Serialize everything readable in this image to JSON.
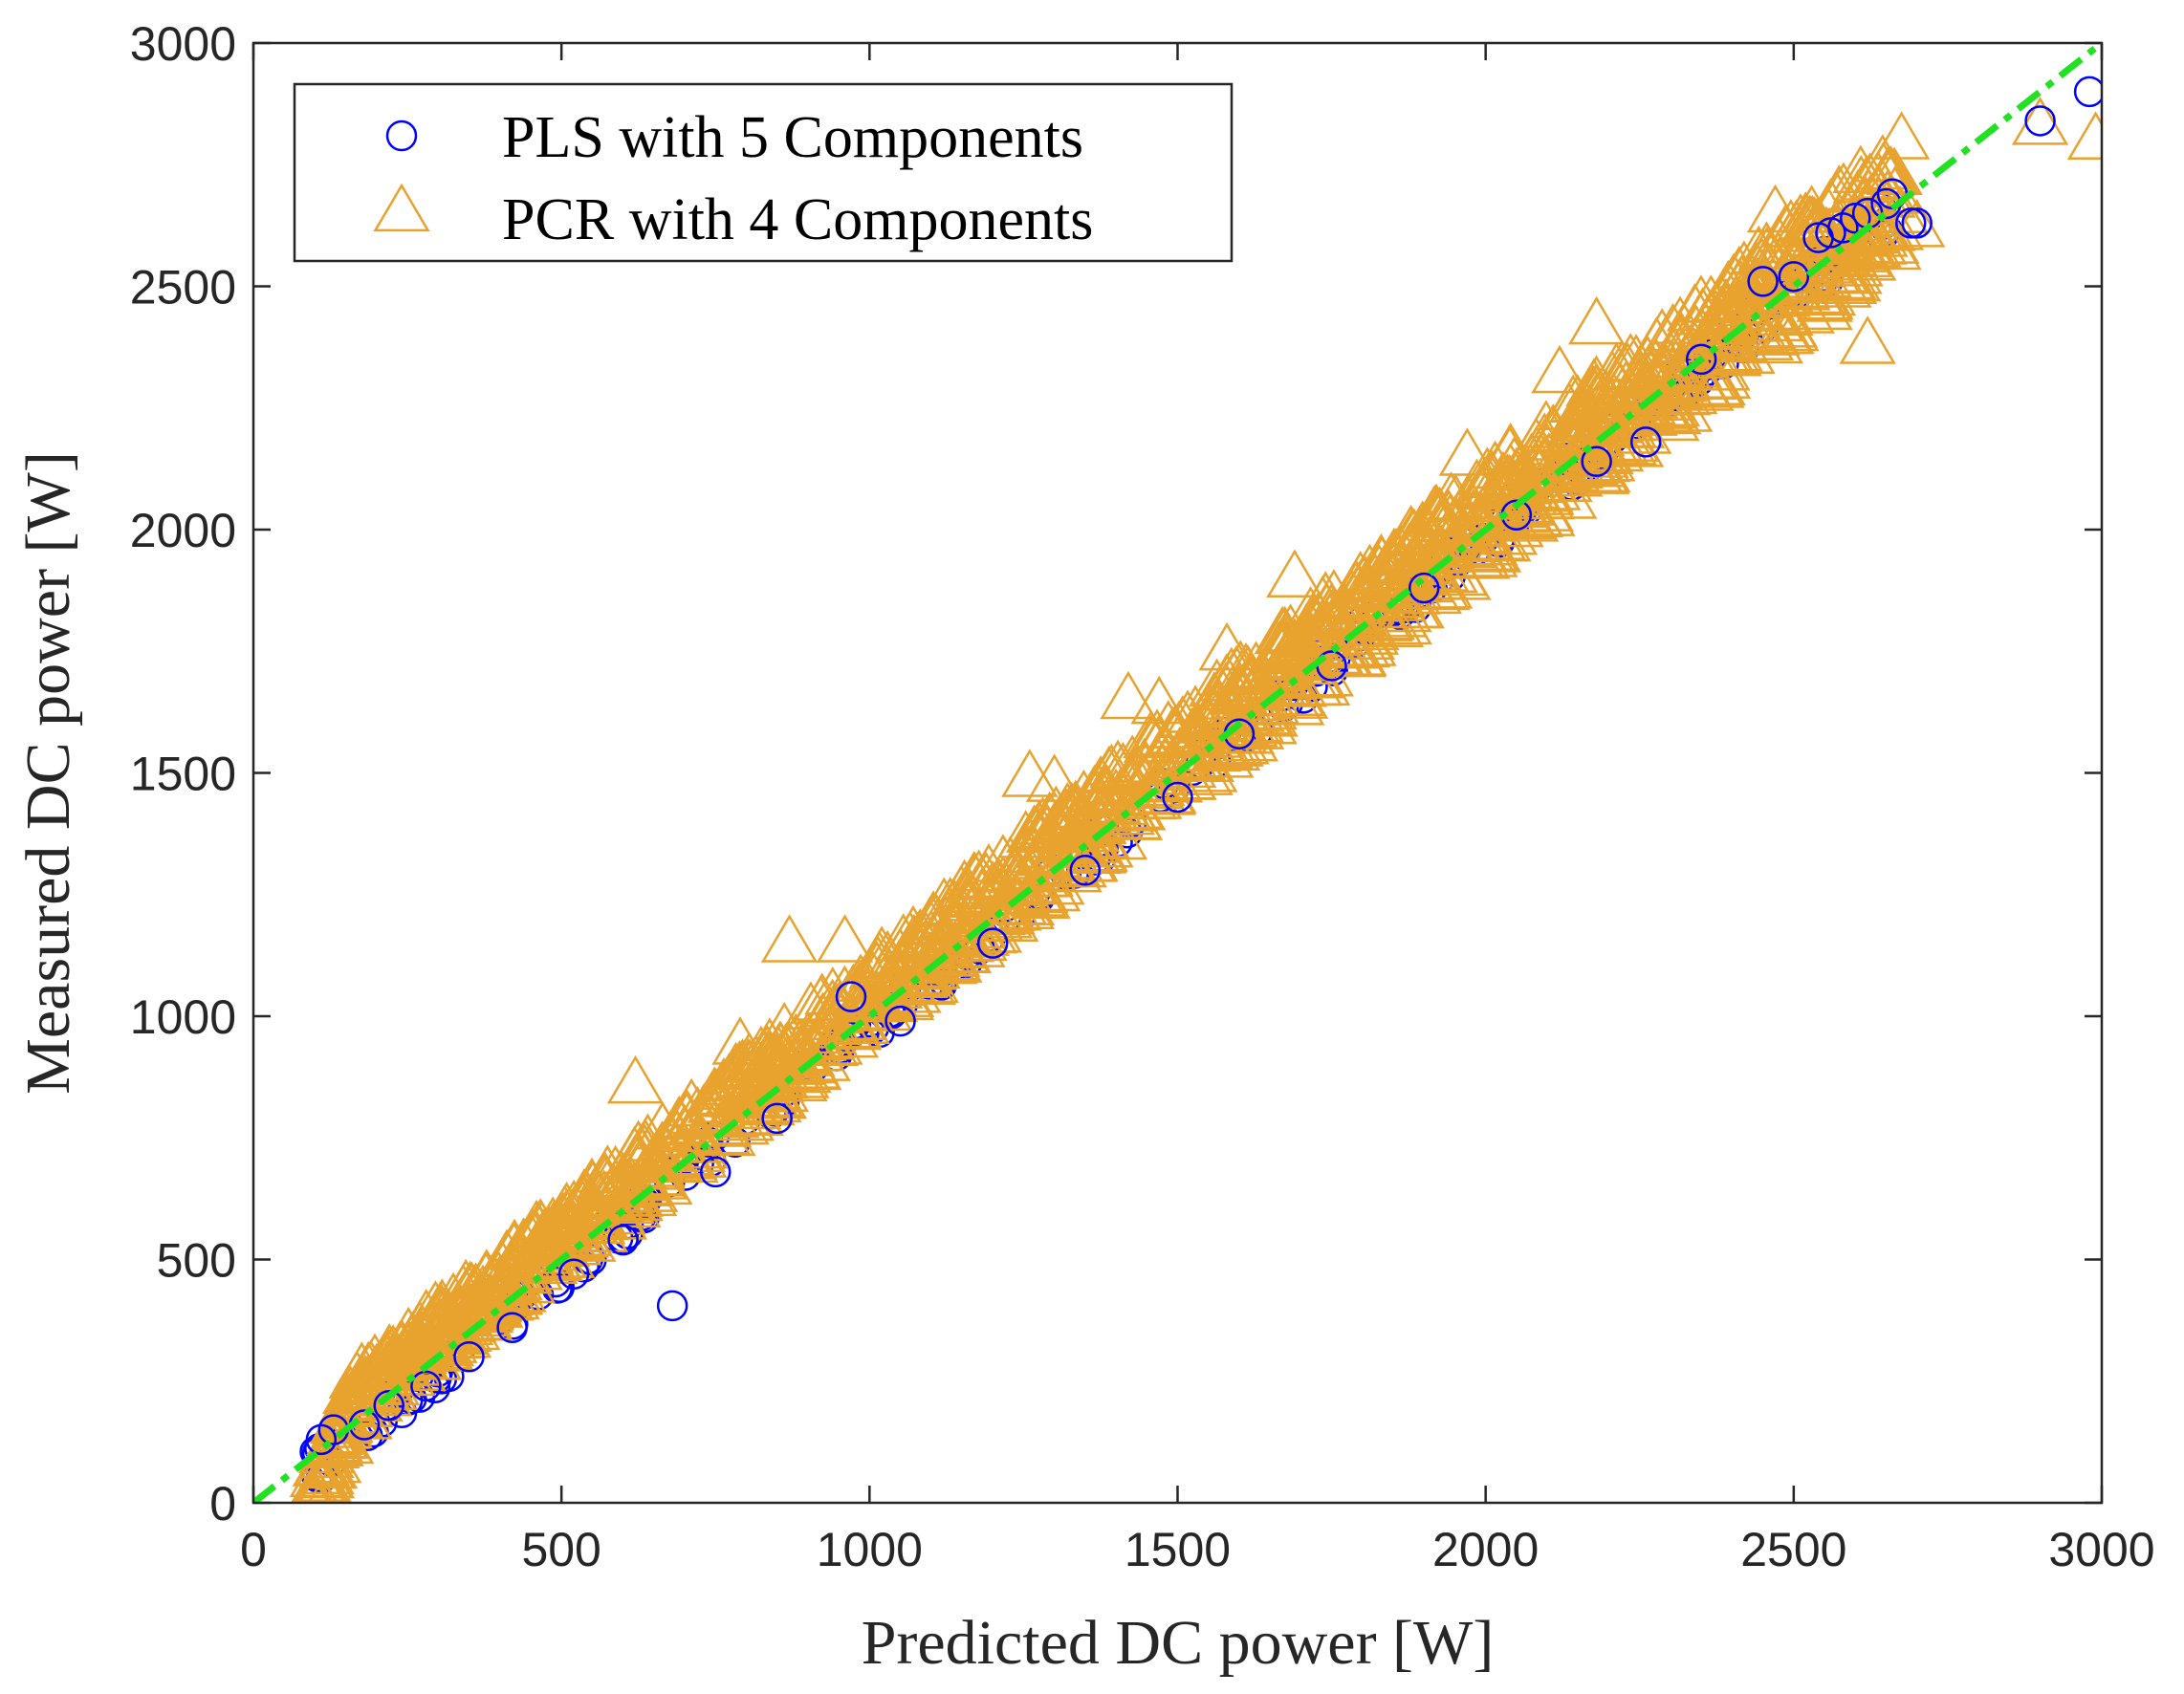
{
  "chart_data": {
    "type": "scatter",
    "title": "",
    "xlabel": "Predicted DC power [W]",
    "ylabel": "Measured DC power [W]",
    "xlim": [
      0,
      3000
    ],
    "ylim": [
      0,
      3000
    ],
    "xticks": [
      0,
      500,
      1000,
      1500,
      2000,
      2500,
      3000
    ],
    "yticks": [
      0,
      500,
      1000,
      1500,
      2000,
      2500,
      3000
    ],
    "grid": false,
    "legend_position": "top-left",
    "reference_line": {
      "name": "y = x",
      "color": "#22e022",
      "style": "dash-dot",
      "x": [
        0,
        3000
      ],
      "y": [
        0,
        3000
      ]
    },
    "series": [
      {
        "name": "PLS  with 5 Components",
        "marker": "circle",
        "color": "#0000ff",
        "points": [
          [
            110,
            130
          ],
          [
            130,
            150
          ],
          [
            180,
            160
          ],
          [
            220,
            200
          ],
          [
            280,
            240
          ],
          [
            350,
            300
          ],
          [
            420,
            360
          ],
          [
            520,
            470
          ],
          [
            600,
            540
          ],
          [
            680,
            405
          ],
          [
            750,
            680
          ],
          [
            850,
            790
          ],
          [
            970,
            1040
          ],
          [
            1050,
            990
          ],
          [
            1200,
            1150
          ],
          [
            1350,
            1300
          ],
          [
            1500,
            1450
          ],
          [
            1600,
            1580
          ],
          [
            1750,
            1720
          ],
          [
            1900,
            1880
          ],
          [
            2050,
            2030
          ],
          [
            2180,
            2140
          ],
          [
            2260,
            2180
          ],
          [
            2350,
            2350
          ],
          [
            2450,
            2510
          ],
          [
            2500,
            2520
          ],
          [
            2540,
            2600
          ],
          [
            2560,
            2610
          ],
          [
            2580,
            2620
          ],
          [
            2600,
            2640
          ],
          [
            2620,
            2650
          ],
          [
            2650,
            2670
          ],
          [
            2660,
            2690
          ],
          [
            2690,
            2630
          ],
          [
            2700,
            2630
          ],
          [
            2900,
            2840
          ],
          [
            2980,
            2900
          ]
        ]
      },
      {
        "name": "PCR with 4 Components",
        "marker": "triangle",
        "color": "#e8a22e",
        "points": [
          [
            100,
            0
          ],
          [
            120,
            10
          ],
          [
            110,
            40
          ],
          [
            130,
            80
          ],
          [
            150,
            120
          ],
          [
            180,
            170
          ],
          [
            220,
            230
          ],
          [
            260,
            280
          ],
          [
            300,
            330
          ],
          [
            350,
            390
          ],
          [
            400,
            450
          ],
          [
            450,
            500
          ],
          [
            500,
            560
          ],
          [
            550,
            610
          ],
          [
            600,
            660
          ],
          [
            620,
            860
          ],
          [
            650,
            700
          ],
          [
            700,
            760
          ],
          [
            750,
            820
          ],
          [
            790,
            940
          ],
          [
            820,
            880
          ],
          [
            870,
            1150
          ],
          [
            900,
            950
          ],
          [
            960,
            1150
          ],
          [
            1000,
            1050
          ],
          [
            1050,
            1100
          ],
          [
            1100,
            1160
          ],
          [
            1150,
            1210
          ],
          [
            1200,
            1260
          ],
          [
            1250,
            1300
          ],
          [
            1260,
            1490
          ],
          [
            1300,
            1480
          ],
          [
            1350,
            1400
          ],
          [
            1400,
            1450
          ],
          [
            1420,
            1650
          ],
          [
            1470,
            1640
          ],
          [
            1500,
            1560
          ],
          [
            1550,
            1600
          ],
          [
            1580,
            1750
          ],
          [
            1600,
            1660
          ],
          [
            1650,
            1700
          ],
          [
            1700,
            1760
          ],
          [
            1690,
            1900
          ],
          [
            1750,
            1800
          ],
          [
            1800,
            1850
          ],
          [
            1850,
            1900
          ],
          [
            1900,
            1960
          ],
          [
            1950,
            2010
          ],
          [
            1970,
            2150
          ],
          [
            2000,
            2060
          ],
          [
            2050,
            2110
          ],
          [
            2100,
            2160
          ],
          [
            2120,
            2320
          ],
          [
            2150,
            2210
          ],
          [
            2180,
            2420
          ],
          [
            2200,
            2260
          ],
          [
            2250,
            2300
          ],
          [
            2300,
            2350
          ],
          [
            2350,
            2400
          ],
          [
            2400,
            2450
          ],
          [
            2450,
            2500
          ],
          [
            2470,
            2650
          ],
          [
            2500,
            2550
          ],
          [
            2550,
            2450
          ],
          [
            2600,
            2620
          ],
          [
            2640,
            2600
          ],
          [
            2620,
            2380
          ],
          [
            2700,
            2620
          ],
          [
            2900,
            2830
          ],
          [
            2990,
            2800
          ]
        ]
      }
    ]
  }
}
